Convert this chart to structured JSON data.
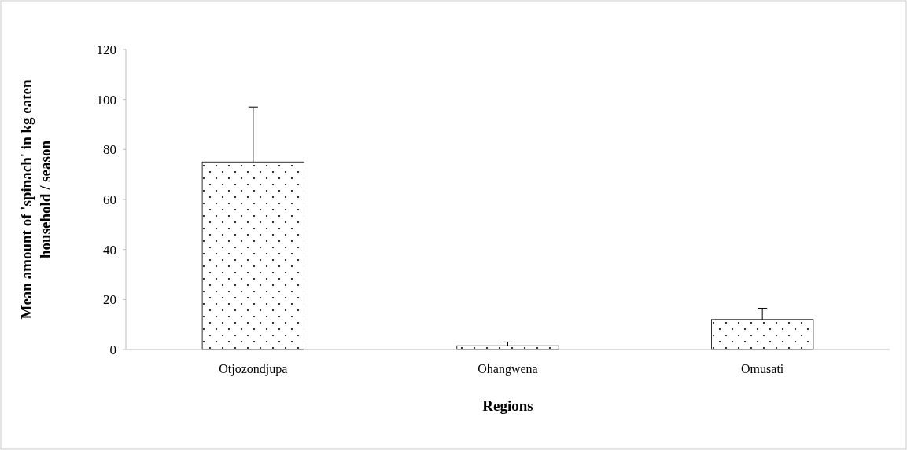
{
  "chart_data": {
    "type": "bar",
    "xlabel": "Regions",
    "ylabel": "Mean amount of 'spinach' in kg eaten household / season",
    "categories": [
      "Otjozondjupa",
      "Ohangwena",
      "Omusati"
    ],
    "values": [
      75,
      1.5,
      12
    ],
    "errors": [
      [
        75,
        97
      ],
      [
        1.5,
        3
      ],
      [
        12,
        16.5
      ]
    ],
    "color": "#000000",
    "ylim": [
      0,
      120
    ],
    "yticks": [
      0,
      20,
      40,
      60,
      80,
      100,
      120
    ],
    "grid": false
  }
}
